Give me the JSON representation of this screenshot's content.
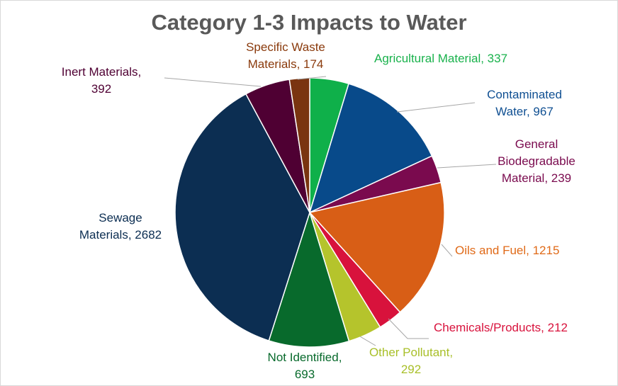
{
  "chart_data": {
    "type": "pie",
    "title": "Category 1-3 Impacts to Water",
    "slices": [
      {
        "name": "Agricultural Material",
        "value": 337,
        "color": "#0fb04a",
        "lines": [
          "Agricultural Material, 337"
        ]
      },
      {
        "name": "Contaminated Water",
        "value": 967,
        "color": "#084a8a",
        "lines": [
          "Contaminated",
          "Water, 967"
        ]
      },
      {
        "name": "General Biodegradable Material",
        "value": 239,
        "color": "#7a0a4e",
        "lines": [
          "General",
          "Biodegradable",
          "Material, 239"
        ]
      },
      {
        "name": "Oils and Fuel",
        "value": 1215,
        "color": "#d85e16",
        "lines": [
          "Oils and Fuel, 1215"
        ]
      },
      {
        "name": "Chemicals/Products",
        "value": 212,
        "color": "#d8123c",
        "lines": [
          "Chemicals/Products, 212"
        ]
      },
      {
        "name": "Other Pollutant",
        "value": 292,
        "color": "#b5c42c",
        "lines": [
          "Other Pollutant,",
          "292"
        ]
      },
      {
        "name": "Not Identified",
        "value": 693,
        "color": "#086a2c",
        "lines": [
          "Not Identified,",
          "693"
        ]
      },
      {
        "name": "Sewage Materials",
        "value": 2682,
        "color": "#0c2e52",
        "lines": [
          "Sewage",
          "Materials, 2682"
        ]
      },
      {
        "name": "Inert Materials",
        "value": 392,
        "color": "#4f0033",
        "lines": [
          "Inert Materials,",
          "392"
        ]
      },
      {
        "name": "Specific Waste Materials",
        "value": 174,
        "color": "#7a3410",
        "lines": [
          "Specific Waste",
          "Materials, 174"
        ]
      }
    ],
    "label_colors": [
      "#19b24c",
      "#0f4f92",
      "#7a0a4e",
      "#e06a18",
      "#d8123c",
      "#a8bf28",
      "#086a2c",
      "#0c2e52",
      "#4f0033",
      "#8a3a0c"
    ]
  }
}
